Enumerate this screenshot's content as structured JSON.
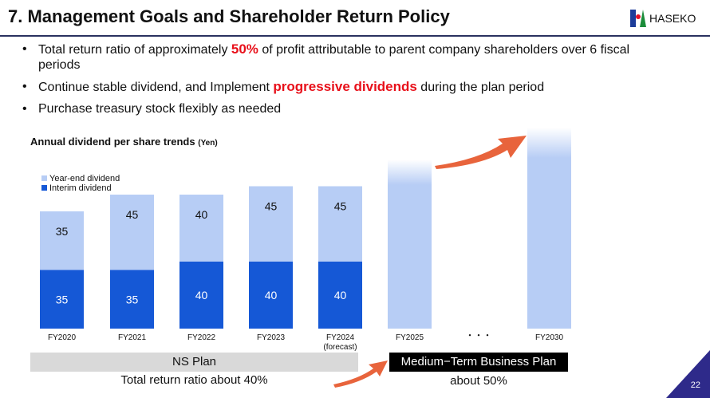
{
  "header": {
    "title": "7. Management Goals and Shareholder Return Policy",
    "logo_text": "HASEKO"
  },
  "bullets": [
    {
      "pre": "Total return ratio of approximately ",
      "hl": "50%",
      "post": " of profit attributable to parent company shareholders over 6 fiscal periods"
    },
    {
      "pre": "Continue stable dividend, and Implement ",
      "hl": "progressive dividends",
      "post": " during the plan period"
    },
    {
      "pre": "Purchase treasury stock flexibly as needed",
      "hl": "",
      "post": ""
    }
  ],
  "chart_data": {
    "type": "bar",
    "title": "Annual dividend per share trends",
    "unit": "(Yen)",
    "categories": [
      "FY2020",
      "FY2021",
      "FY2022",
      "FY2023",
      "FY2024",
      "FY2025",
      "FY2030"
    ],
    "category_notes": {
      "FY2024": "(forecast)"
    },
    "ellipsis": "・・・",
    "series": [
      {
        "name": "Interim  dividend",
        "color": "#1558d6",
        "values": [
          35,
          35,
          40,
          40,
          40,
          null,
          null
        ]
      },
      {
        "name": "Year-end dividend",
        "color": "#b7cdf5",
        "values": [
          35,
          45,
          40,
          45,
          45,
          null,
          null
        ]
      }
    ],
    "future_bars": {
      "FY2025": "increasing",
      "FY2030": "increasing"
    }
  },
  "plans": {
    "ns_plan": "NS Plan",
    "ns_sub": "Total return ratio about 40%",
    "mtbp": "Medium−Term Business Plan",
    "mtbp_sub": "about 50%"
  },
  "colors": {
    "arrow": "#e8643c"
  },
  "page_number": "22"
}
